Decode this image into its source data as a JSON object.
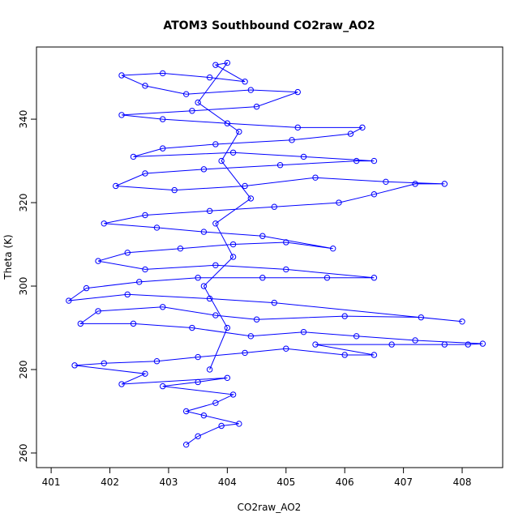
{
  "chart_data": {
    "type": "line",
    "title": "ATOM3 Southbound CO2raw_AO2",
    "x_label": "CO2raw_AO2",
    "y_label": "Theta (K)",
    "xlim": [
      400.75,
      408.69
    ],
    "ylim": [
      256.5,
      357.3
    ],
    "xticks": [
      401,
      402,
      403,
      404,
      405,
      406,
      407,
      408
    ],
    "yticks": [
      260,
      280,
      300,
      320,
      340
    ],
    "markers": "open-circle",
    "series": [
      {
        "color": "#0000ff",
        "x": [
          403.3,
          403.5,
          403.9,
          404.2,
          403.6,
          403.3,
          403.8,
          404.1,
          402.9,
          403.5,
          404.0,
          402.2,
          402.6,
          401.4,
          401.9,
          402.8,
          403.5,
          404.3,
          405.0,
          406.0,
          406.5,
          405.5,
          406.8,
          407.7,
          408.1,
          408.35,
          407.2,
          406.2,
          405.3,
          404.4,
          403.4,
          402.4,
          401.5,
          401.8,
          402.9,
          403.8,
          404.5,
          406.0,
          407.3,
          408.0,
          404.8,
          403.7,
          402.3,
          401.3,
          401.6,
          402.5,
          403.5,
          404.6,
          405.7,
          406.5,
          405.0,
          403.8,
          402.6,
          401.8,
          402.3,
          403.2,
          404.1,
          405.0,
          405.8,
          404.6,
          403.6,
          402.8,
          401.9,
          402.6,
          403.7,
          404.8,
          405.9,
          406.5,
          407.2,
          407.7,
          406.7,
          405.5,
          404.3,
          403.1,
          402.1,
          402.6,
          403.6,
          404.9,
          406.2,
          406.5,
          405.3,
          404.1,
          402.4,
          402.9,
          403.8,
          405.1,
          406.1,
          406.3,
          405.2,
          404.0,
          402.9,
          402.2,
          403.4,
          404.5,
          405.2,
          404.4,
          403.3,
          402.6,
          402.2,
          402.9,
          403.7,
          404.3,
          403.8,
          404.0,
          403.5,
          404.2,
          403.9,
          404.4,
          403.8,
          404.1,
          403.6,
          404.0,
          403.7
        ],
        "values": [
          262,
          264,
          266.5,
          267,
          269,
          270,
          272,
          274,
          276,
          277,
          278,
          276.5,
          279,
          281,
          281.5,
          282,
          283,
          284,
          285,
          283.5,
          283.5,
          286,
          286,
          286,
          286,
          286.2,
          287,
          288,
          289,
          288,
          290,
          291,
          291,
          294,
          295,
          293,
          292,
          292.8,
          292.5,
          291.5,
          296,
          297,
          298,
          296.5,
          299.5,
          301,
          302,
          302,
          302,
          302,
          304,
          305,
          304,
          306,
          308,
          309,
          310,
          310.5,
          309,
          312,
          313,
          314,
          315,
          317,
          318,
          319,
          320,
          322,
          324.5,
          324.5,
          325,
          326,
          324,
          323,
          324,
          327,
          328,
          329,
          330,
          330,
          331,
          332,
          331,
          333,
          334,
          335,
          336.5,
          338,
          338,
          339,
          340,
          341,
          342,
          343,
          346.5,
          347,
          346,
          348,
          350.5,
          351,
          350,
          349,
          353,
          353.5,
          344,
          337,
          330,
          321,
          315,
          307,
          300,
          290,
          280
        ]
      }
    ]
  }
}
